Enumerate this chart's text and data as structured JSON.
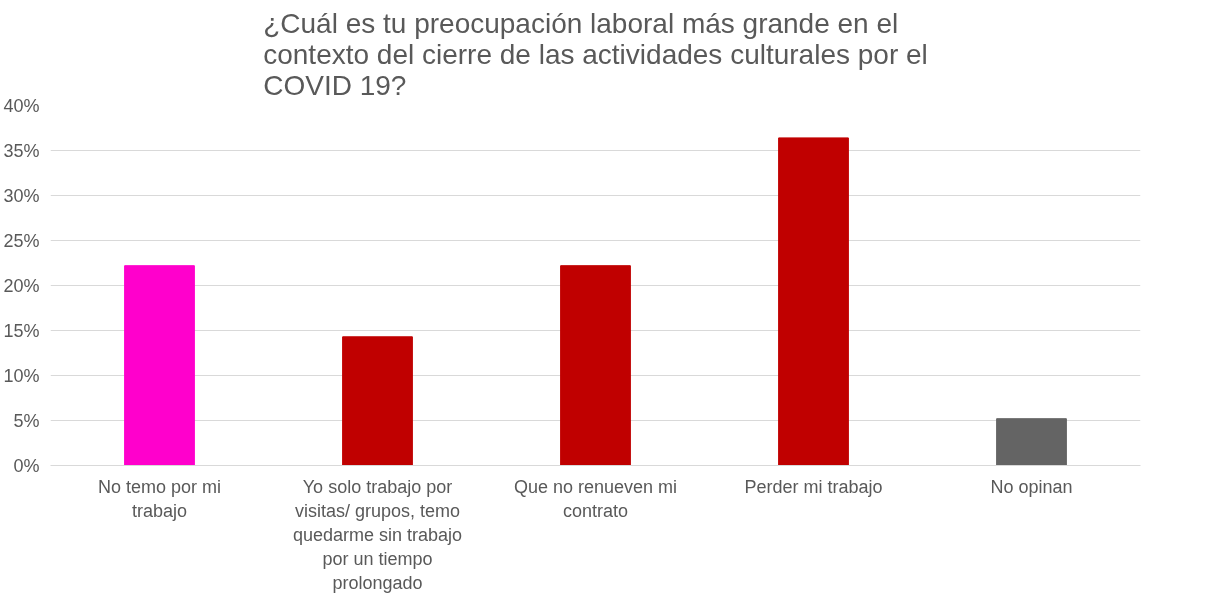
{
  "chart_data": {
    "type": "bar",
    "title": "¿Cuál es tu preocupación laboral más grande en el contexto del cierre de las actividades culturales por el COVID 19?",
    "categories": [
      "No temo por mi trabajo",
      "Yo solo trabajo por visitas/ grupos, temo quedarme sin trabajo por un tiempo prolongado",
      "Que no renueven mi contrato",
      "Perder mi trabajo",
      "No opinan"
    ],
    "values": [
      22.2,
      14.3,
      22.2,
      36.4,
      5.2
    ],
    "colors": [
      "#ff00cc",
      "#c00000",
      "#c00000",
      "#c00000",
      "#646464"
    ],
    "ylim": [
      0,
      40
    ],
    "yticks": [
      {
        "value": 0,
        "label": "0%"
      },
      {
        "value": 5,
        "label": "5%"
      },
      {
        "value": 10,
        "label": "10%"
      },
      {
        "value": 15,
        "label": "15%"
      },
      {
        "value": 20,
        "label": "20%"
      },
      {
        "value": 25,
        "label": "25%"
      },
      {
        "value": 30,
        "label": "30%"
      },
      {
        "value": 35,
        "label": "35%"
      },
      {
        "value": 40,
        "label": "40%"
      }
    ],
    "grid": "y"
  }
}
